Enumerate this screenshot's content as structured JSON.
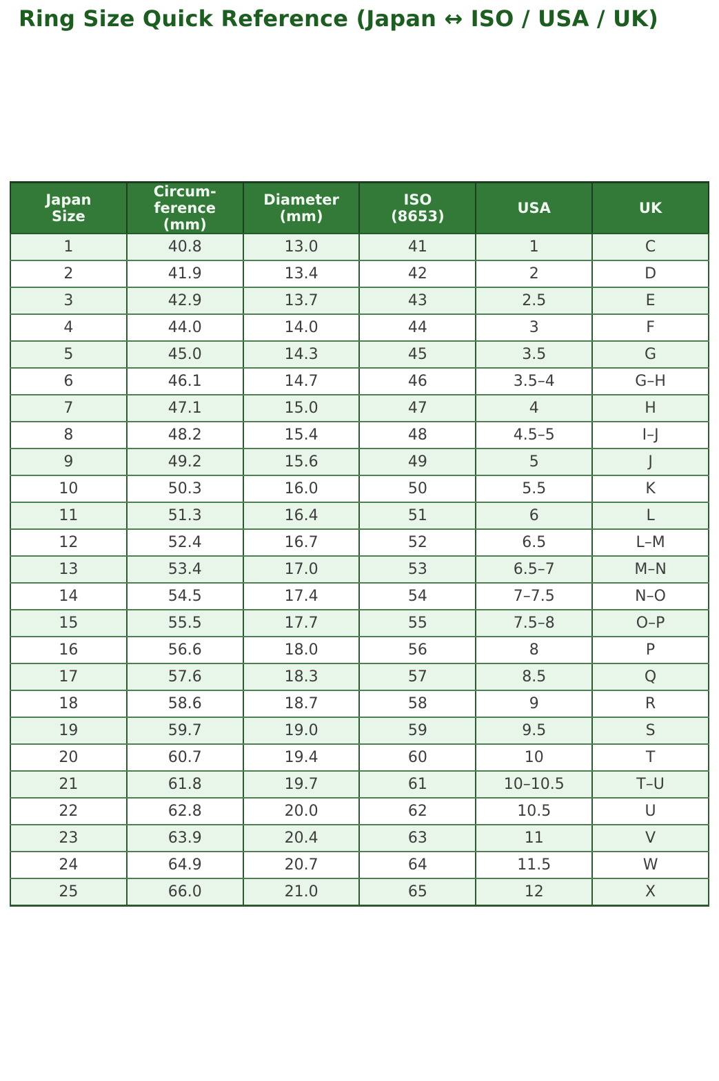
{
  "title": "Ring Size Quick Reference (Japan ↔ ISO / USA / UK)",
  "colors": {
    "title_text": "#1b5e20",
    "header_bg": "#337a38",
    "header_text": "#f1f8f1",
    "row_alt_bg": "#e8f5e9",
    "row_bg": "#ffffff",
    "grid_border": "#2a5a2e",
    "row_divider": "#4c8050",
    "body_text": "#3d3d3d"
  },
  "chart_data": {
    "type": "table",
    "title": "Ring Size Quick Reference (Japan ↔ ISO / USA / UK)",
    "columns": [
      {
        "key": "japan-size",
        "lines": [
          "Japan",
          "Size"
        ]
      },
      {
        "key": "circumference-mm",
        "lines": [
          "Circum-",
          "ference",
          "(mm)"
        ]
      },
      {
        "key": "diameter-mm",
        "lines": [
          "Diameter",
          "(mm)"
        ]
      },
      {
        "key": "iso-8653",
        "lines": [
          "ISO",
          "(8653)"
        ]
      },
      {
        "key": "usa",
        "lines": [
          "USA"
        ]
      },
      {
        "key": "uk",
        "lines": [
          "UK"
        ]
      }
    ],
    "rows": [
      [
        "1",
        "40.8",
        "13.0",
        "41",
        "1",
        "C"
      ],
      [
        "2",
        "41.9",
        "13.4",
        "42",
        "2",
        "D"
      ],
      [
        "3",
        "42.9",
        "13.7",
        "43",
        "2.5",
        "E"
      ],
      [
        "4",
        "44.0",
        "14.0",
        "44",
        "3",
        "F"
      ],
      [
        "5",
        "45.0",
        "14.3",
        "45",
        "3.5",
        "G"
      ],
      [
        "6",
        "46.1",
        "14.7",
        "46",
        "3.5–4",
        "G–H"
      ],
      [
        "7",
        "47.1",
        "15.0",
        "47",
        "4",
        "H"
      ],
      [
        "8",
        "48.2",
        "15.4",
        "48",
        "4.5–5",
        "I–J"
      ],
      [
        "9",
        "49.2",
        "15.6",
        "49",
        "5",
        "J"
      ],
      [
        "10",
        "50.3",
        "16.0",
        "50",
        "5.5",
        "K"
      ],
      [
        "11",
        "51.3",
        "16.4",
        "51",
        "6",
        "L"
      ],
      [
        "12",
        "52.4",
        "16.7",
        "52",
        "6.5",
        "L–M"
      ],
      [
        "13",
        "53.4",
        "17.0",
        "53",
        "6.5–7",
        "M–N"
      ],
      [
        "14",
        "54.5",
        "17.4",
        "54",
        "7–7.5",
        "N–O"
      ],
      [
        "15",
        "55.5",
        "17.7",
        "55",
        "7.5–8",
        "O–P"
      ],
      [
        "16",
        "56.6",
        "18.0",
        "56",
        "8",
        "P"
      ],
      [
        "17",
        "57.6",
        "18.3",
        "57",
        "8.5",
        "Q"
      ],
      [
        "18",
        "58.6",
        "18.7",
        "58",
        "9",
        "R"
      ],
      [
        "19",
        "59.7",
        "19.0",
        "59",
        "9.5",
        "S"
      ],
      [
        "20",
        "60.7",
        "19.4",
        "60",
        "10",
        "T"
      ],
      [
        "21",
        "61.8",
        "19.7",
        "61",
        "10–10.5",
        "T–U"
      ],
      [
        "22",
        "62.8",
        "20.0",
        "62",
        "10.5",
        "U"
      ],
      [
        "23",
        "63.9",
        "20.4",
        "63",
        "11",
        "V"
      ],
      [
        "24",
        "64.9",
        "20.7",
        "64",
        "11.5",
        "W"
      ],
      [
        "25",
        "66.0",
        "21.0",
        "65",
        "12",
        "X"
      ]
    ]
  }
}
